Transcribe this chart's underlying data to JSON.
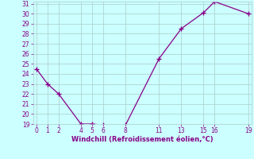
{
  "x": [
    0,
    1,
    2,
    4,
    5,
    6,
    8,
    11,
    13,
    15,
    16,
    19
  ],
  "y": [
    24.5,
    23,
    22,
    19,
    19,
    18.9,
    18.9,
    25.5,
    28.5,
    30.1,
    31.2,
    30
  ],
  "line_color": "#880088",
  "marker_color": "#880088",
  "bg_color": "#ccffff",
  "grid_color": "#aacccc",
  "xlabel": "Windchill (Refroidissement éolien,°C)",
  "xlabel_color": "#880088",
  "ylim_min": 19,
  "ylim_max": 31,
  "xlim_min": -0.3,
  "xlim_max": 19.3,
  "yticks": [
    19,
    20,
    21,
    22,
    23,
    24,
    25,
    26,
    27,
    28,
    29,
    30,
    31
  ],
  "xticks": [
    0,
    1,
    2,
    4,
    5,
    6,
    8,
    11,
    13,
    15,
    16,
    19
  ]
}
